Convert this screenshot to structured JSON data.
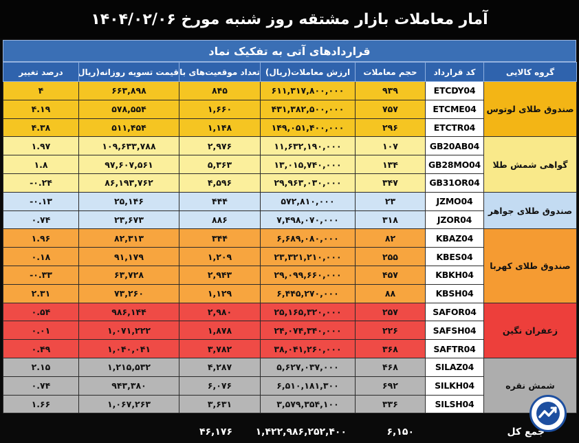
{
  "header": {
    "title": "آمار معاملات بازار مشتقه روز شنبه مورخ ۱۴۰۴/۰۲/۰۶",
    "subtitle": "قراردادهای آتی به تفکیک نماد"
  },
  "columns": {
    "group": "گروه کالایی",
    "code": "کد قرارداد",
    "volume": "حجم  معاملات",
    "value": "ارزش معاملات(ریال)",
    "open_interest": "تعداد موقعیت‌های باز",
    "settlement": "قیمت تسویه روزانه(ریال)",
    "change": "درصد تغییر"
  },
  "groups": [
    {
      "name": "صندوق طلای لوتوس",
      "rows": [
        {
          "code": "ETCDY04",
          "volume": "۹۳۹",
          "value": "۶۱۱,۳۱۷,۸۰۰,۰۰۰",
          "open_interest": "۸۴۵",
          "settlement": "۶۶۳,۸۹۸",
          "change": "۴"
        },
        {
          "code": "ETCME04",
          "volume": "۷۵۷",
          "value": "۴۳۱,۳۸۲,۵۰۰,۰۰۰",
          "open_interest": "۱,۶۶۰",
          "settlement": "۵۷۸,۵۵۴",
          "change": "۴.۱۹"
        },
        {
          "code": "ETCTR04",
          "volume": "۲۹۶",
          "value": "۱۴۹,۰۵۱,۴۰۰,۰۰۰",
          "open_interest": "۱,۱۴۸",
          "settlement": "۵۱۱,۴۵۴",
          "change": "۴.۳۸"
        }
      ]
    },
    {
      "name": "گواهی شمش طلا",
      "rows": [
        {
          "code": "GB20AB04",
          "volume": "۱۰۷",
          "value": "۱۱,۶۳۲,۱۹۰,۰۰۰",
          "open_interest": "۲,۹۷۶",
          "settlement": "۱۰۹,۶۳۳,۷۸۸",
          "change": "۱.۹۷"
        },
        {
          "code": "GB28MO04",
          "volume": "۱۳۴",
          "value": "۱۳,۰۱۵,۷۴۰,۰۰۰",
          "open_interest": "۵,۳۶۳",
          "settlement": "۹۷,۶۰۷,۵۶۱",
          "change": "۱.۸"
        },
        {
          "code": "GB31OR04",
          "volume": "۳۴۷",
          "value": "۲۹,۹۶۳,۰۳۰,۰۰۰",
          "open_interest": "۴,۵۹۶",
          "settlement": "۸۶,۱۹۳,۷۶۲",
          "change": "۰.۲۴-"
        }
      ]
    },
    {
      "name": "صندوق طلای جواهر",
      "rows": [
        {
          "code": "JZMO04",
          "volume": "۲۳",
          "value": "۵۷۲,۸۱۰,۰۰۰",
          "open_interest": "۴۴۴",
          "settlement": "۲۵,۱۴۶",
          "change": "۰.۱۳-"
        },
        {
          "code": "JZOR04",
          "volume": "۳۱۸",
          "value": "۷,۴۹۸,۰۷۰,۰۰۰",
          "open_interest": "۸۸۶",
          "settlement": "۲۳,۶۷۳",
          "change": "۰.۷۴"
        }
      ]
    },
    {
      "name": "صندوق طلای کهربا",
      "rows": [
        {
          "code": "KBAZ04",
          "volume": "۸۲",
          "value": "۶,۶۸۹,۰۸۰,۰۰۰",
          "open_interest": "۳۴۴",
          "settlement": "۸۲,۳۱۳",
          "change": "۱.۹۶"
        },
        {
          "code": "KBES04",
          "volume": "۲۵۵",
          "value": "۲۳,۳۲۱,۲۱۰,۰۰۰",
          "open_interest": "۱,۲۰۹",
          "settlement": "۹۱,۱۷۹",
          "change": "۰.۱۸"
        },
        {
          "code": "KBKH04",
          "volume": "۴۵۷",
          "value": "۲۹,۰۹۹,۶۶۰,۰۰۰",
          "open_interest": "۲,۹۴۳",
          "settlement": "۶۳,۷۲۸",
          "change": "۰.۳۳-"
        },
        {
          "code": "KBSH04",
          "volume": "۸۸",
          "value": "۶,۴۴۵,۲۷۰,۰۰۰",
          "open_interest": "۱,۱۲۹",
          "settlement": "۷۳,۲۶۰",
          "change": "۲.۳۱"
        }
      ]
    },
    {
      "name": "زعفران نگین",
      "rows": [
        {
          "code": "SAFOR04",
          "volume": "۲۵۷",
          "value": "۲۵,۱۶۵,۳۲۰,۰۰۰",
          "open_interest": "۲,۹۸۰",
          "settlement": "۹۸۶,۱۴۴",
          "change": "۰.۵۴"
        },
        {
          "code": "SAFSH04",
          "volume": "۲۲۶",
          "value": "۲۴,۰۷۴,۳۴۰,۰۰۰",
          "open_interest": "۱,۸۷۸",
          "settlement": "۱,۰۷۱,۲۲۲",
          "change": "۰.۰۱"
        },
        {
          "code": "SAFTR04",
          "volume": "۳۶۸",
          "value": "۳۸,۰۴۱,۲۶۰,۰۰۰",
          "open_interest": "۳,۷۸۲",
          "settlement": "۱,۰۴۰,۰۴۱",
          "change": "۰.۴۹"
        }
      ]
    },
    {
      "name": "شمش نقره",
      "rows": [
        {
          "code": "SILAZ04",
          "volume": "۴۶۸",
          "value": "۵,۶۲۷,۰۳۷,۰۰۰",
          "open_interest": "۴,۲۸۷",
          "settlement": "۱,۲۱۵,۵۳۲",
          "change": "۲.۱۵"
        },
        {
          "code": "SILKH04",
          "volume": "۶۹۲",
          "value": "۶,۵۱۰,۱۸۱,۳۰۰",
          "open_interest": "۶,۰۷۶",
          "settlement": "۹۴۳,۳۸۰",
          "change": "۰.۷۴"
        },
        {
          "code": "SILSH04",
          "volume": "۳۳۶",
          "value": "۳,۵۷۹,۳۵۴,۱۰۰",
          "open_interest": "۳,۶۳۱",
          "settlement": "۱,۰۶۷,۲۶۳",
          "change": "۱.۶۶"
        }
      ]
    }
  ],
  "totals": {
    "label": "جمع کل",
    "volume": "۶,۱۵۰",
    "value": "۱,۴۲۲,۹۸۶,۲۵۲,۴۰۰",
    "open_interest": "۴۶,۱۷۶"
  },
  "colors": {
    "lotus": "#f5c522",
    "shamsh": "#fbef9c",
    "javaher": "#cfe3f5",
    "kahroba": "#f7a53f",
    "zafran": "#ef4b46",
    "noghre": "#b6b6b6",
    "header": "#2f63ad"
  },
  "logo": {
    "icon": "trend-chart-logo-icon"
  }
}
